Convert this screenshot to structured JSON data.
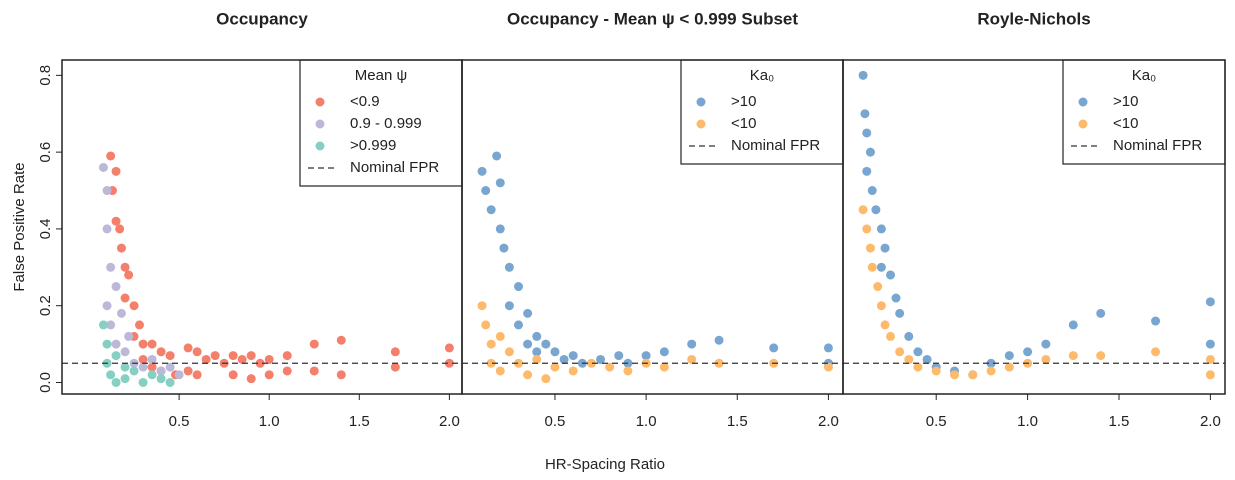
{
  "chart_data": [
    {
      "type": "scatter",
      "title": "Occupancy",
      "ylabel": "False Positive Rate",
      "xlim": [
        -0.15,
        2.07
      ],
      "ylim": [
        -0.03,
        0.84
      ],
      "xticks": [
        0.5,
        {
          "value": 1,
          "label": "1.0"
        },
        1.5,
        {
          "value": 2,
          "label": "2.0"
        }
      ],
      "yticks": [
        {
          "value": 0,
          "label": "0.0"
        },
        0.2,
        0.4,
        0.6,
        0.8
      ],
      "legend": "top-right",
      "legend_title": "Mean ψ",
      "reference_line": {
        "label": "Nominal FPR",
        "value": 0.05
      },
      "series": [
        {
          "name": "<0.9",
          "color": "#f47f6b",
          "x": [
            0.12,
            0.13,
            0.15,
            0.15,
            0.17,
            0.18,
            0.2,
            0.2,
            0.22,
            0.25,
            0.25,
            0.28,
            0.3,
            0.3,
            0.35,
            0.35,
            0.4,
            0.4,
            0.45,
            0.48,
            0.55,
            0.55,
            0.6,
            0.6,
            0.65,
            0.7,
            0.75,
            0.8,
            0.8,
            0.85,
            0.9,
            0.9,
            0.95,
            1.0,
            1.0,
            1.1,
            1.1,
            1.25,
            1.25,
            1.4,
            1.4,
            1.7,
            1.7,
            2.0,
            2.0
          ],
          "values": [
            0.59,
            0.5,
            0.55,
            0.42,
            0.4,
            0.35,
            0.3,
            0.22,
            0.28,
            0.2,
            0.12,
            0.15,
            0.1,
            0.06,
            0.1,
            0.04,
            0.08,
            0.03,
            0.07,
            0.02,
            0.09,
            0.03,
            0.08,
            0.02,
            0.06,
            0.07,
            0.05,
            0.07,
            0.02,
            0.06,
            0.07,
            0.01,
            0.05,
            0.06,
            0.02,
            0.07,
            0.03,
            0.1,
            0.03,
            0.11,
            0.02,
            0.08,
            0.04,
            0.09,
            0.05
          ]
        },
        {
          "name": "0.9 - 0.999",
          "color": "#bcb8d8",
          "x": [
            0.08,
            0.1,
            0.1,
            0.12,
            0.1,
            0.12,
            0.15,
            0.15,
            0.18,
            0.2,
            0.22,
            0.25,
            0.3,
            0.35,
            0.4,
            0.45,
            0.5
          ],
          "values": [
            0.56,
            0.5,
            0.4,
            0.3,
            0.2,
            0.15,
            0.25,
            0.1,
            0.18,
            0.08,
            0.12,
            0.05,
            0.04,
            0.06,
            0.03,
            0.04,
            0.02
          ]
        },
        {
          "name": ">0.999",
          "color": "#86cfc2",
          "x": [
            0.08,
            0.1,
            0.1,
            0.12,
            0.15,
            0.15,
            0.2,
            0.2,
            0.25,
            0.3,
            0.35,
            0.4,
            0.45
          ],
          "values": [
            0.15,
            0.1,
            0.05,
            0.02,
            0.07,
            0.0,
            0.04,
            0.01,
            0.03,
            0.0,
            0.02,
            0.01,
            0.0
          ]
        }
      ]
    },
    {
      "type": "scatter",
      "title": "Occupancy - Mean ψ < 0.999 Subset",
      "xlabel": "HR-Spacing Ratio",
      "xlim": [
        -0.01,
        2.08
      ],
      "ylim": [
        -0.03,
        0.84
      ],
      "xticks": [
        0.5,
        {
          "value": 1,
          "label": "1.0"
        },
        1.5,
        {
          "value": 2,
          "label": "2.0"
        }
      ],
      "legend": "top-right",
      "legend_title": "Ka₀",
      "reference_line": {
        "label": "Nominal FPR",
        "value": 0.05
      },
      "series": [
        {
          "name": ">10",
          "color": "#78a6d0",
          "x": [
            0.1,
            0.12,
            0.15,
            0.18,
            0.2,
            0.2,
            0.22,
            0.25,
            0.25,
            0.3,
            0.3,
            0.35,
            0.35,
            0.4,
            0.4,
            0.45,
            0.5,
            0.55,
            0.6,
            0.65,
            0.75,
            0.85,
            0.9,
            1.0,
            1.1,
            1.25,
            1.4,
            1.7,
            2.0,
            2.0
          ],
          "values": [
            0.55,
            0.5,
            0.45,
            0.59,
            0.52,
            0.4,
            0.35,
            0.3,
            0.2,
            0.25,
            0.15,
            0.18,
            0.1,
            0.12,
            0.08,
            0.1,
            0.08,
            0.06,
            0.07,
            0.05,
            0.06,
            0.07,
            0.05,
            0.07,
            0.08,
            0.1,
            0.11,
            0.09,
            0.09,
            0.05
          ]
        },
        {
          "name": "<10",
          "color": "#fdba6b",
          "x": [
            0.1,
            0.12,
            0.15,
            0.15,
            0.2,
            0.2,
            0.25,
            0.3,
            0.35,
            0.4,
            0.45,
            0.5,
            0.6,
            0.7,
            0.8,
            0.9,
            1.0,
            1.1,
            1.25,
            1.4,
            1.7,
            2.0
          ],
          "values": [
            0.2,
            0.15,
            0.1,
            0.05,
            0.12,
            0.03,
            0.08,
            0.05,
            0.02,
            0.06,
            0.01,
            0.04,
            0.03,
            0.05,
            0.04,
            0.03,
            0.05,
            0.04,
            0.06,
            0.05,
            0.05,
            0.04
          ]
        }
      ]
    },
    {
      "type": "scatter",
      "title": "Royle-Nichols",
      "xlim": [
        -0.01,
        2.08
      ],
      "ylim": [
        -0.03,
        0.84
      ],
      "xticks": [
        0.5,
        {
          "value": 1,
          "label": "1.0"
        },
        1.5,
        {
          "value": 2,
          "label": "2.0"
        }
      ],
      "legend": "top-right",
      "legend_title": "Ka₀",
      "reference_line": {
        "label": "Nominal FPR",
        "value": 0.05
      },
      "series": [
        {
          "name": ">10",
          "color": "#78a6d0",
          "x": [
            0.1,
            0.11,
            0.12,
            0.12,
            0.14,
            0.15,
            0.17,
            0.2,
            0.2,
            0.22,
            0.25,
            0.28,
            0.3,
            0.35,
            0.4,
            0.45,
            0.5,
            0.6,
            0.7,
            0.8,
            0.9,
            1.0,
            1.1,
            1.25,
            1.4,
            1.7,
            2.0,
            2.0
          ],
          "values": [
            0.8,
            0.7,
            0.65,
            0.55,
            0.6,
            0.5,
            0.45,
            0.4,
            0.3,
            0.35,
            0.28,
            0.22,
            0.18,
            0.12,
            0.08,
            0.06,
            0.04,
            0.03,
            0.02,
            0.05,
            0.07,
            0.08,
            0.1,
            0.15,
            0.18,
            0.16,
            0.21,
            0.1
          ]
        },
        {
          "name": "<10",
          "color": "#fdba6b",
          "x": [
            0.1,
            0.12,
            0.14,
            0.15,
            0.18,
            0.2,
            0.22,
            0.25,
            0.3,
            0.35,
            0.4,
            0.5,
            0.6,
            0.7,
            0.8,
            0.9,
            1.0,
            1.1,
            1.25,
            1.4,
            1.7,
            2.0,
            2.0
          ],
          "values": [
            0.45,
            0.4,
            0.35,
            0.3,
            0.25,
            0.2,
            0.15,
            0.12,
            0.08,
            0.06,
            0.04,
            0.03,
            0.02,
            0.02,
            0.03,
            0.04,
            0.05,
            0.06,
            0.07,
            0.07,
            0.08,
            0.06,
            0.02
          ]
        }
      ]
    }
  ]
}
